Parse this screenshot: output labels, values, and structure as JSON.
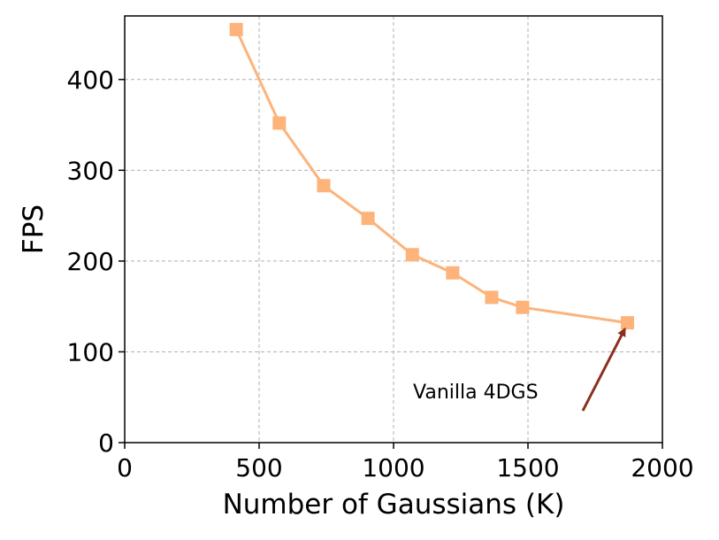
{
  "chart_data": {
    "type": "line",
    "title": "",
    "xlabel": "Number of Gaussians (K)",
    "ylabel": "FPS",
    "xlim": [
      0,
      2000
    ],
    "ylim": [
      0,
      470
    ],
    "x_ticks": [
      0,
      500,
      1000,
      1500,
      2000
    ],
    "y_ticks": [
      0,
      100,
      200,
      300,
      400
    ],
    "grid": true,
    "series": [
      {
        "x": [
          415,
          575,
          740,
          905,
          1070,
          1220,
          1365,
          1480,
          1870
        ],
        "y": [
          455,
          352,
          283,
          247,
          207,
          187,
          160,
          149,
          132
        ],
        "color": "#fdb37a",
        "marker": "square"
      }
    ],
    "annotation": {
      "text": "Vanilla 4DGS",
      "arrow_color": "#8b2e1f",
      "target": [
        1870,
        132
      ]
    }
  }
}
